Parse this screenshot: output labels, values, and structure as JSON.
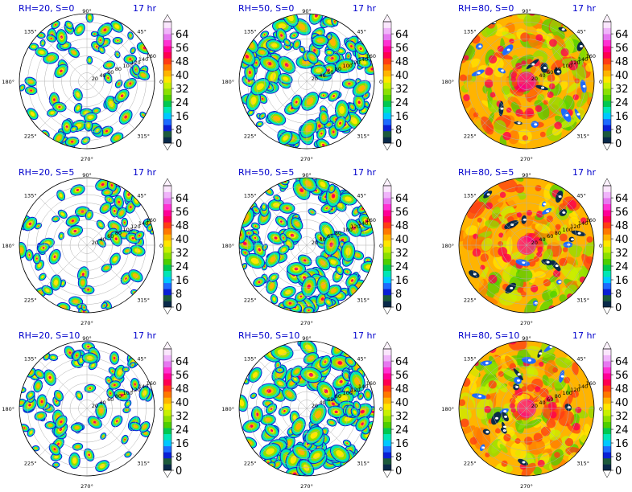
{
  "figure": {
    "colorbar_ticks": [
      "0",
      "8",
      "16",
      "24",
      "32",
      "40",
      "48",
      "56",
      "64"
    ],
    "colorbar_colors": [
      "#0a2a4a",
      "#1c5a3c",
      "#0a1fd6",
      "#1e6bff",
      "#00c8ff",
      "#00e6b4",
      "#00c850",
      "#4ecf00",
      "#8ce000",
      "#c8f000",
      "#ffe600",
      "#ffb400",
      "#ff7800",
      "#ff3c14",
      "#ff0050",
      "#ff0096",
      "#ff32d2",
      "#e678f0",
      "#f0b4fa",
      "#fae6fc"
    ],
    "angle_labels": [
      "0°",
      "45°",
      "90°",
      "135°",
      "180°",
      "225°",
      "270°",
      "315°"
    ],
    "radial_labels": [
      "20",
      "40",
      "60",
      "80",
      "100",
      "120",
      "140",
      "160"
    ]
  },
  "chart_data": [
    {
      "type": "heatmap",
      "title_left": "RH=20, S=0",
      "title_right": "17 hr",
      "projection": "polar",
      "rlim": [
        0,
        160
      ],
      "rticks": [
        20,
        40,
        60,
        80,
        100,
        120,
        140,
        160
      ],
      "colorbar": {
        "min": 0,
        "max": 64,
        "ticks": [
          0,
          8,
          16,
          24,
          32,
          40,
          48,
          56,
          64
        ],
        "extend": "both"
      },
      "coverage": 0.22
    },
    {
      "type": "heatmap",
      "title_left": "RH=50, S=0",
      "title_right": "17 hr",
      "projection": "polar",
      "rlim": [
        0,
        160
      ],
      "rticks": [
        20,
        40,
        60,
        80,
        100,
        120,
        140,
        160
      ],
      "colorbar": {
        "min": 0,
        "max": 64,
        "ticks": [
          0,
          8,
          16,
          24,
          32,
          40,
          48,
          56,
          64
        ],
        "extend": "both"
      },
      "coverage": 0.55
    },
    {
      "type": "heatmap",
      "title_left": "RH=80, S=0",
      "title_right": "17 hr",
      "projection": "polar",
      "rlim": [
        0,
        160
      ],
      "rticks": [
        20,
        40,
        60,
        80,
        100,
        120,
        140,
        160
      ],
      "colorbar": {
        "min": 0,
        "max": 64,
        "ticks": [
          0,
          8,
          16,
          24,
          32,
          40,
          48,
          56,
          64
        ],
        "extend": "both"
      },
      "coverage": 0.97
    },
    {
      "type": "heatmap",
      "title_left": "RH=20, S=5",
      "title_right": "17 hr",
      "projection": "polar",
      "rlim": [
        0,
        160
      ],
      "rticks": [
        20,
        40,
        60,
        80,
        100,
        120,
        140,
        160
      ],
      "colorbar": {
        "min": 0,
        "max": 64,
        "ticks": [
          0,
          8,
          16,
          24,
          32,
          40,
          48,
          56,
          64
        ],
        "extend": "both"
      },
      "coverage": 0.2
    },
    {
      "type": "heatmap",
      "title_left": "RH=50, S=5",
      "title_right": "17 hr",
      "projection": "polar",
      "rlim": [
        0,
        160
      ],
      "rticks": [
        20,
        40,
        60,
        80,
        100,
        120,
        140,
        160
      ],
      "colorbar": {
        "min": 0,
        "max": 64,
        "ticks": [
          0,
          8,
          16,
          24,
          32,
          40,
          48,
          56,
          64
        ],
        "extend": "both"
      },
      "coverage": 0.6
    },
    {
      "type": "heatmap",
      "title_left": "RH=80, S=5",
      "title_right": "17 hr",
      "projection": "polar",
      "rlim": [
        0,
        160
      ],
      "rticks": [
        20,
        40,
        60,
        80,
        100,
        120,
        140,
        160
      ],
      "colorbar": {
        "min": 0,
        "max": 64,
        "ticks": [
          0,
          8,
          16,
          24,
          32,
          40,
          48,
          56,
          64
        ],
        "extend": "both"
      },
      "coverage": 0.97
    },
    {
      "type": "heatmap",
      "title_left": "RH=20, S=10",
      "title_right": "17 hr",
      "projection": "polar",
      "rlim": [
        0,
        160
      ],
      "rticks": [
        20,
        40,
        60,
        80,
        100,
        120,
        140,
        160
      ],
      "colorbar": {
        "min": 0,
        "max": 64,
        "ticks": [
          0,
          8,
          16,
          24,
          32,
          40,
          48,
          56,
          64
        ],
        "extend": "both"
      },
      "coverage": 0.25
    },
    {
      "type": "heatmap",
      "title_left": "RH=50, S=10",
      "title_right": "17 hr",
      "projection": "polar",
      "rlim": [
        0,
        160
      ],
      "rticks": [
        20,
        40,
        60,
        80,
        100,
        120,
        140,
        160
      ],
      "colorbar": {
        "min": 0,
        "max": 64,
        "ticks": [
          0,
          8,
          16,
          24,
          32,
          40,
          48,
          56,
          64
        ],
        "extend": "both"
      },
      "coverage": 0.65
    },
    {
      "type": "heatmap",
      "title_left": "RH=80, S=10",
      "title_right": "17 hr",
      "projection": "polar",
      "rlim": [
        0,
        160
      ],
      "rticks": [
        20,
        40,
        60,
        80,
        100,
        120,
        140,
        160
      ],
      "colorbar": {
        "min": 0,
        "max": 64,
        "ticks": [
          0,
          8,
          16,
          24,
          32,
          40,
          48,
          56,
          64
        ],
        "extend": "both"
      },
      "coverage": 0.97
    }
  ]
}
